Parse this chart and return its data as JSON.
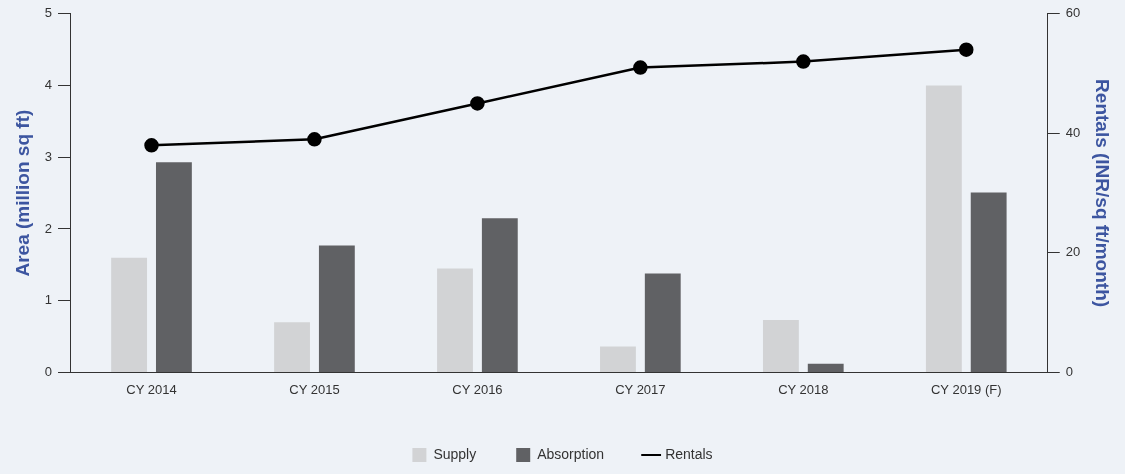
{
  "chart_data": {
    "type": "bar",
    "ylabel": "Area (million sq ft)",
    "y2label": "Rentals (INR/sq ft/month)",
    "categories": [
      "CY 2014",
      "CY 2015",
      "CY 2016",
      "CY 2017",
      "CY 2018",
      "CY 2019 (F)"
    ],
    "series": [
      {
        "name": "Supply",
        "color": "#d2d3d5",
        "values": [
          1.6,
          0.7,
          1.45,
          0.36,
          0.73,
          4.0
        ]
      },
      {
        "name": "Absorption",
        "color": "#606164",
        "values": [
          2.93,
          1.77,
          2.15,
          1.38,
          0.12,
          2.51
        ]
      },
      {
        "name": "Rentals",
        "type": "line",
        "axis": "y2",
        "color": "#000000",
        "values": [
          38,
          39,
          45,
          51,
          52,
          54
        ]
      }
    ],
    "ylim": [
      0,
      5
    ],
    "yticks": [
      0,
      1,
      2,
      3,
      4,
      5
    ],
    "y2lim": [
      0,
      60
    ],
    "y2ticks": [
      0,
      20,
      40,
      60
    ],
    "grid": false,
    "legend": "bottom",
    "marker": "circle",
    "line_style": "solid"
  }
}
